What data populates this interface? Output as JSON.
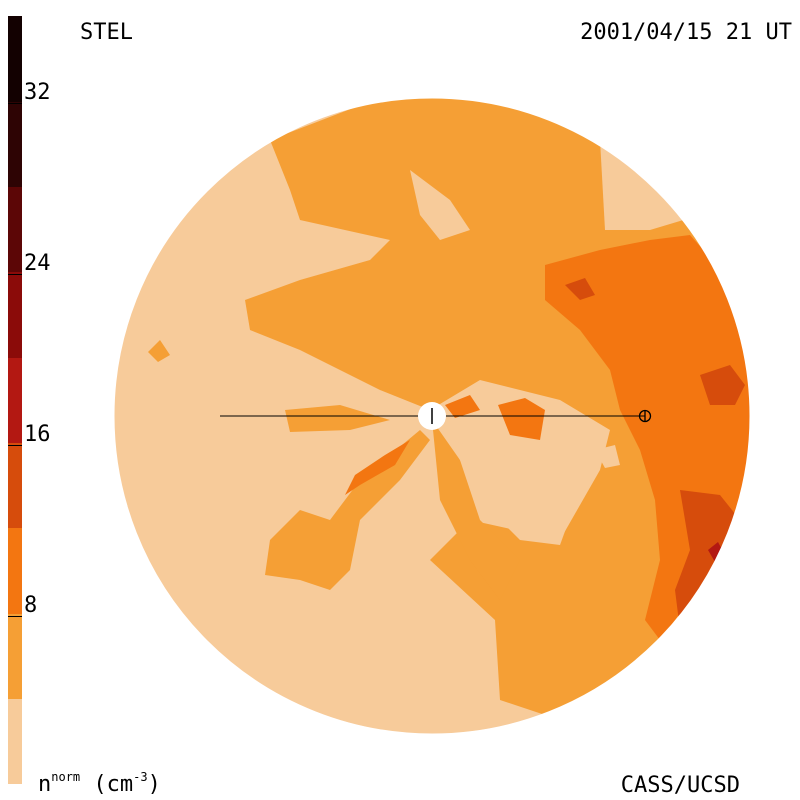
{
  "header": {
    "left": "STEL",
    "right": "2001/04/15 21 UT"
  },
  "footer": {
    "credit": "CASS/UCSD",
    "unit_base": "n",
    "unit_sup": "norm",
    "unit_rest": " (cm",
    "unit_exp": "-3",
    "unit_end": ")"
  },
  "colorbar": {
    "ticks": [
      "32",
      "24",
      "16",
      "8"
    ],
    "levels": [
      "#f7cb9a",
      "#f59f35",
      "#f37611",
      "#d64c0c",
      "#b31812",
      "#8b0b09",
      "#5c0606",
      "#2e0404",
      "#130101"
    ]
  },
  "map": {
    "colors": {
      "background": "#f7cb9a",
      "mid": "#f59f35",
      "high": "#f37611",
      "higher": "#d64c0c",
      "peak": "#b31812"
    },
    "sun_icon": "sun-disk-icon",
    "earth_icon": "earth-crosshair-icon"
  }
}
